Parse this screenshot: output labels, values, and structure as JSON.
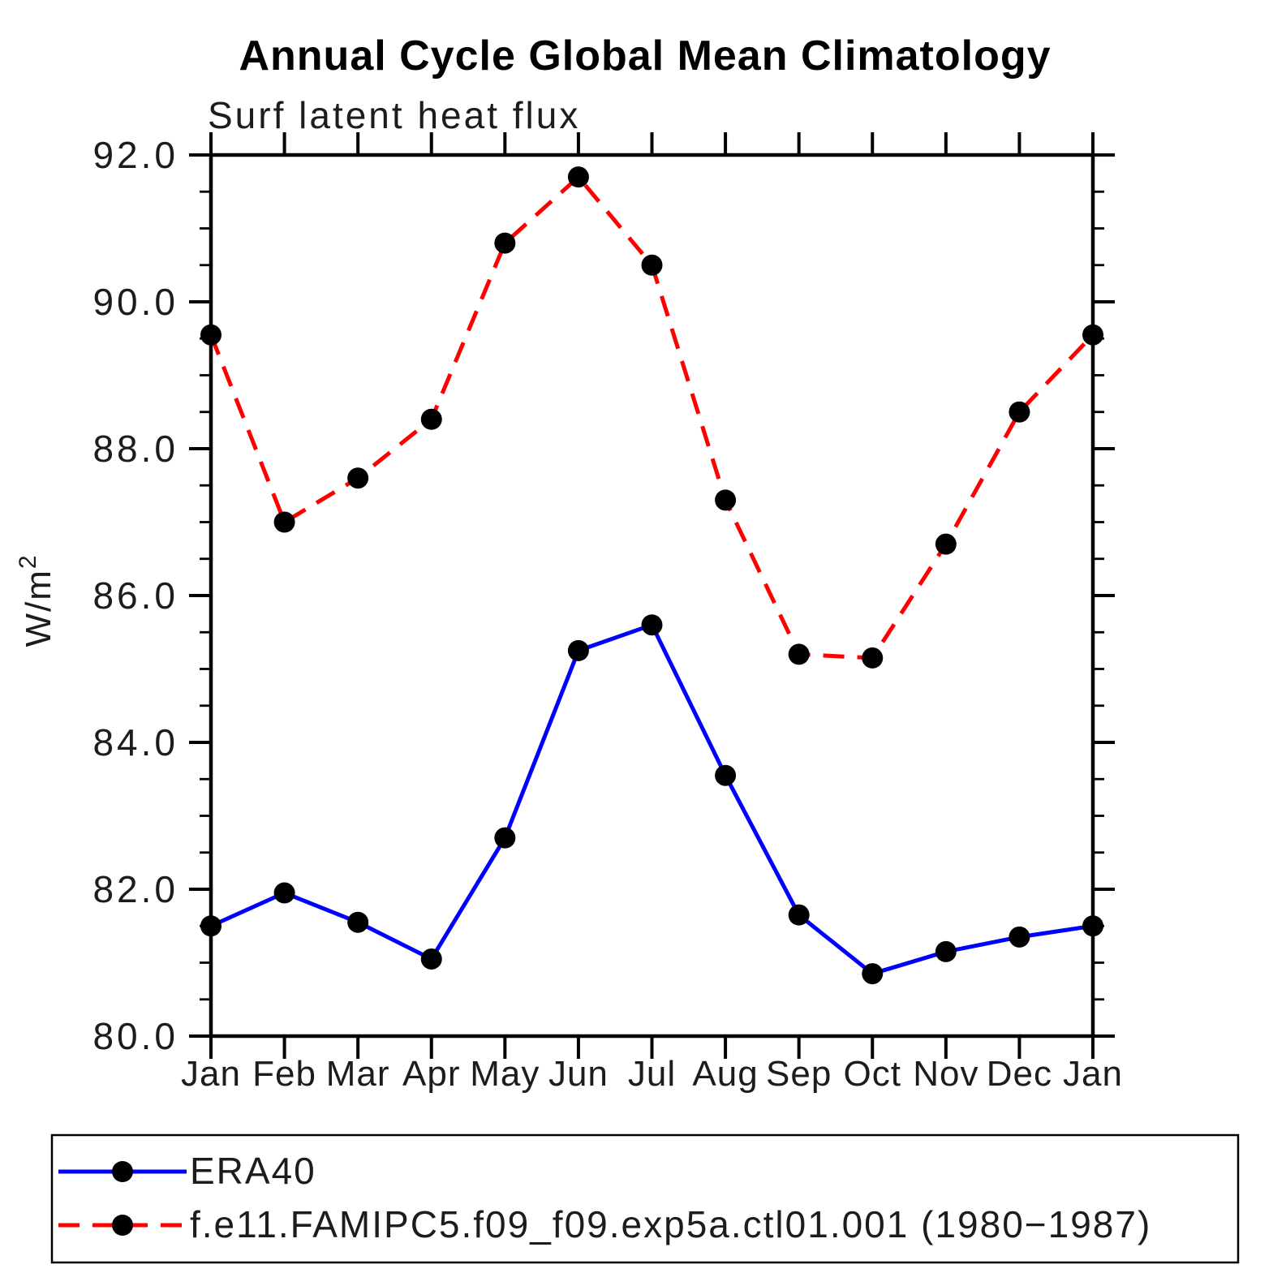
{
  "page": {
    "background_color": "#ffffff"
  },
  "chart_data": {
    "type": "line",
    "title": "Annual Cycle Global Mean Climatology",
    "subtitle": "Surf latent heat flux",
    "ylabel": {
      "text": "W/m",
      "superscript": "2"
    },
    "categories": [
      "Jan",
      "Feb",
      "Mar",
      "Apr",
      "May",
      "Jun",
      "Jul",
      "Aug",
      "Sep",
      "Oct",
      "Nov",
      "Dec",
      "Jan"
    ],
    "ylim": [
      80.0,
      92.0
    ],
    "ytick_step": 2.0,
    "yminor_step": 0.5,
    "ytick_labels": [
      "80.0",
      "82.0",
      "84.0",
      "86.0",
      "88.0",
      "90.0",
      "92.0"
    ],
    "grid": "off",
    "axis_color": "#000000",
    "legend_position": "bottom-box",
    "series": [
      {
        "name": "ERA40",
        "color": "#0000ff",
        "line_style": "solid",
        "marker": "circle",
        "marker_color": "#000000",
        "values": [
          81.5,
          81.95,
          81.55,
          81.05,
          82.7,
          85.25,
          85.6,
          83.55,
          81.65,
          80.85,
          81.15,
          81.35,
          81.5
        ]
      },
      {
        "name": "f.e11.FAMIPC5.f09_f09.exp5a.ctl01.001 (1980−1987)",
        "color": "#ff0000",
        "line_style": "dashed",
        "marker": "circle",
        "marker_color": "#000000",
        "values": [
          89.55,
          87.0,
          87.6,
          88.4,
          90.8,
          91.7,
          90.5,
          87.3,
          85.2,
          85.15,
          86.7,
          88.5,
          89.55
        ]
      }
    ]
  }
}
